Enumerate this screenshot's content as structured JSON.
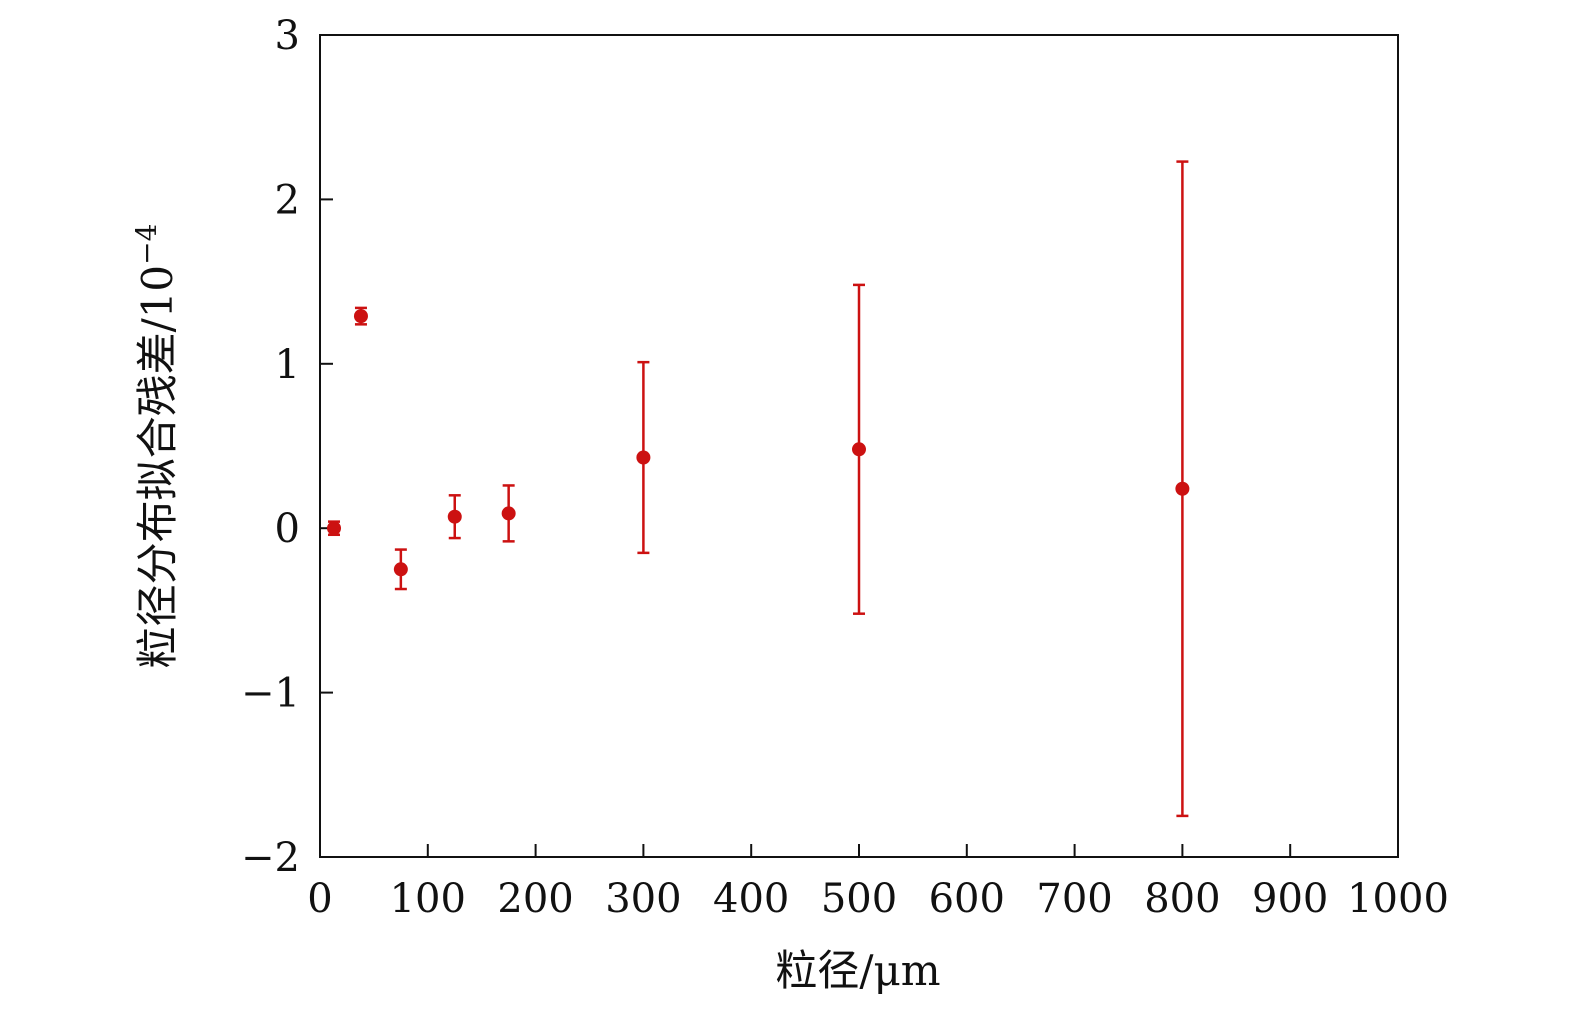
{
  "chart_data": {
    "type": "scatter",
    "title": "",
    "xlabel": "粒径/μm",
    "ylabel_main": "粒径分布拟合残差/10",
    "ylabel_sup": "−4",
    "xlim": [
      0,
      1000
    ],
    "ylim": [
      -2,
      3
    ],
    "x_ticks": [
      0,
      100,
      200,
      300,
      400,
      500,
      600,
      700,
      800,
      900,
      1000
    ],
    "x_tick_labels": [
      "0",
      "100",
      "200",
      "300",
      "400",
      "500",
      "600",
      "700",
      "800",
      "900",
      "1000"
    ],
    "y_ticks": [
      -2,
      -1,
      0,
      1,
      2,
      3
    ],
    "y_tick_labels": [
      "−2",
      "−1",
      "0",
      "1",
      "2",
      "3"
    ],
    "grid": false,
    "marker_color": "#cc1111",
    "series": [
      {
        "points": [
          {
            "x": 13,
            "y": 0.0,
            "err": 0.04
          },
          {
            "x": 38,
            "y": 1.29,
            "err": 0.05
          },
          {
            "x": 75,
            "y": -0.25,
            "err": 0.12
          },
          {
            "x": 125,
            "y": 0.07,
            "err": 0.13
          },
          {
            "x": 175,
            "y": 0.09,
            "err": 0.17
          },
          {
            "x": 300,
            "y": 0.43,
            "err": 0.58
          },
          {
            "x": 500,
            "y": 0.48,
            "err": 1.0
          },
          {
            "x": 800,
            "y": 0.24,
            "err": 1.99
          }
        ]
      }
    ]
  }
}
